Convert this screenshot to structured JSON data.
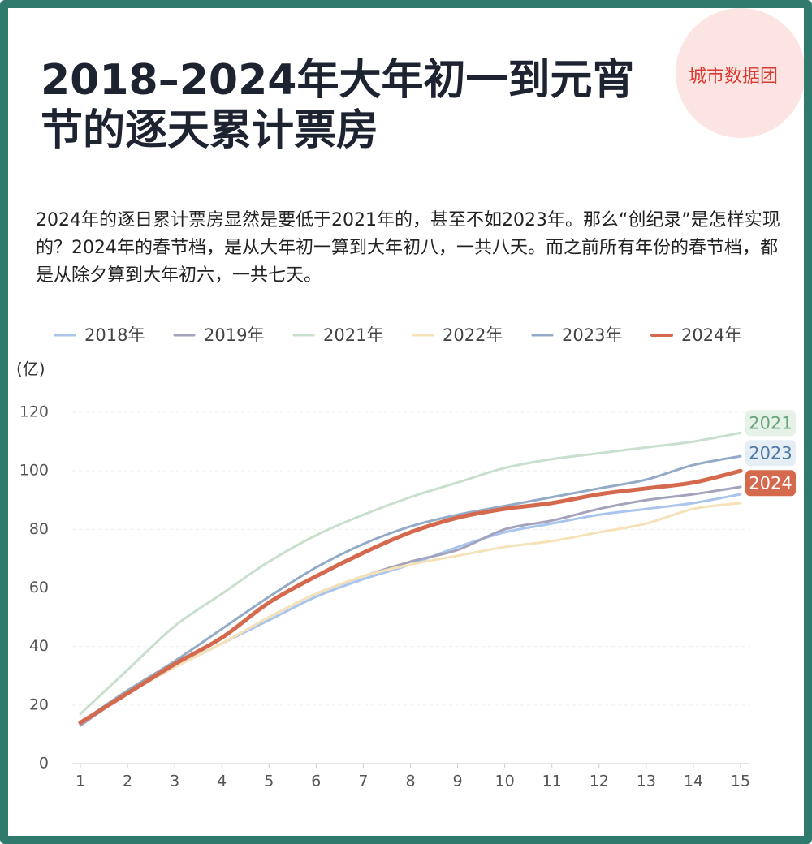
{
  "watermark": "城市数据团",
  "chart_data": {
    "type": "line",
    "title": "2018–2024年大年初一到元宵节的逐天累计票房",
    "subtitle": "2024年的逐日累计票房显然是要低于2021年的，甚至不如2023年。那么“创纪录”是怎样实现的？2024年的春节档，是从大年初一算到大年初八，一共八天。而之前所有年份的春节档，都是从除夕算到大年初六，一共七天。",
    "y_label": "(亿)",
    "x": [
      1,
      2,
      3,
      4,
      5,
      6,
      7,
      8,
      9,
      10,
      11,
      12,
      13,
      14,
      15
    ],
    "xlim": [
      1,
      15
    ],
    "xticks": [
      1,
      2,
      3,
      4,
      5,
      6,
      7,
      8,
      9,
      10,
      11,
      12,
      13,
      14,
      15
    ],
    "ylim": [
      0,
      120
    ],
    "yticks": [
      0,
      20,
      40,
      60,
      80,
      100,
      120
    ],
    "grid": true,
    "legend": "top",
    "series": [
      {
        "name": "2018年",
        "color": "#a9c5ee",
        "values": [
          14,
          24,
          33,
          41,
          49,
          57,
          63,
          68,
          74,
          79,
          82,
          85,
          87,
          89,
          92
        ]
      },
      {
        "name": "2019年",
        "color": "#a3a3bd",
        "values": [
          13,
          24,
          33,
          41,
          50,
          58,
          64,
          69,
          73,
          80,
          83,
          87,
          90,
          92,
          94.5
        ]
      },
      {
        "name": "2021年",
        "color": "#c8dfcd",
        "values": [
          17,
          32,
          47,
          58,
          69,
          78,
          85,
          91,
          96,
          101,
          104,
          106,
          108,
          110,
          113
        ],
        "end_label": "2021",
        "end_label_color": "#6aa47a",
        "end_label_bg": "#e6f1e8"
      },
      {
        "name": "2022年",
        "color": "#f6e2b8",
        "values": [
          14,
          24,
          33,
          41,
          50,
          58,
          64,
          68,
          71,
          74,
          76,
          79,
          82,
          87,
          89
        ]
      },
      {
        "name": "2023年",
        "color": "#93abc6",
        "values": [
          14,
          25,
          35,
          46,
          57,
          67,
          75,
          81,
          85,
          88,
          91,
          94,
          97,
          102,
          105
        ],
        "end_label": "2023",
        "end_label_color": "#4f7aa6",
        "end_label_bg": "#e5edf5"
      },
      {
        "name": "2024年",
        "color": "#d4694d",
        "values": [
          14,
          24,
          34,
          43,
          55,
          64,
          72,
          79,
          84,
          87,
          89,
          92,
          94,
          96,
          100
        ],
        "end_label": "2024",
        "end_label_color": "#ffffff",
        "end_label_bg": "#d4694d"
      }
    ]
  }
}
